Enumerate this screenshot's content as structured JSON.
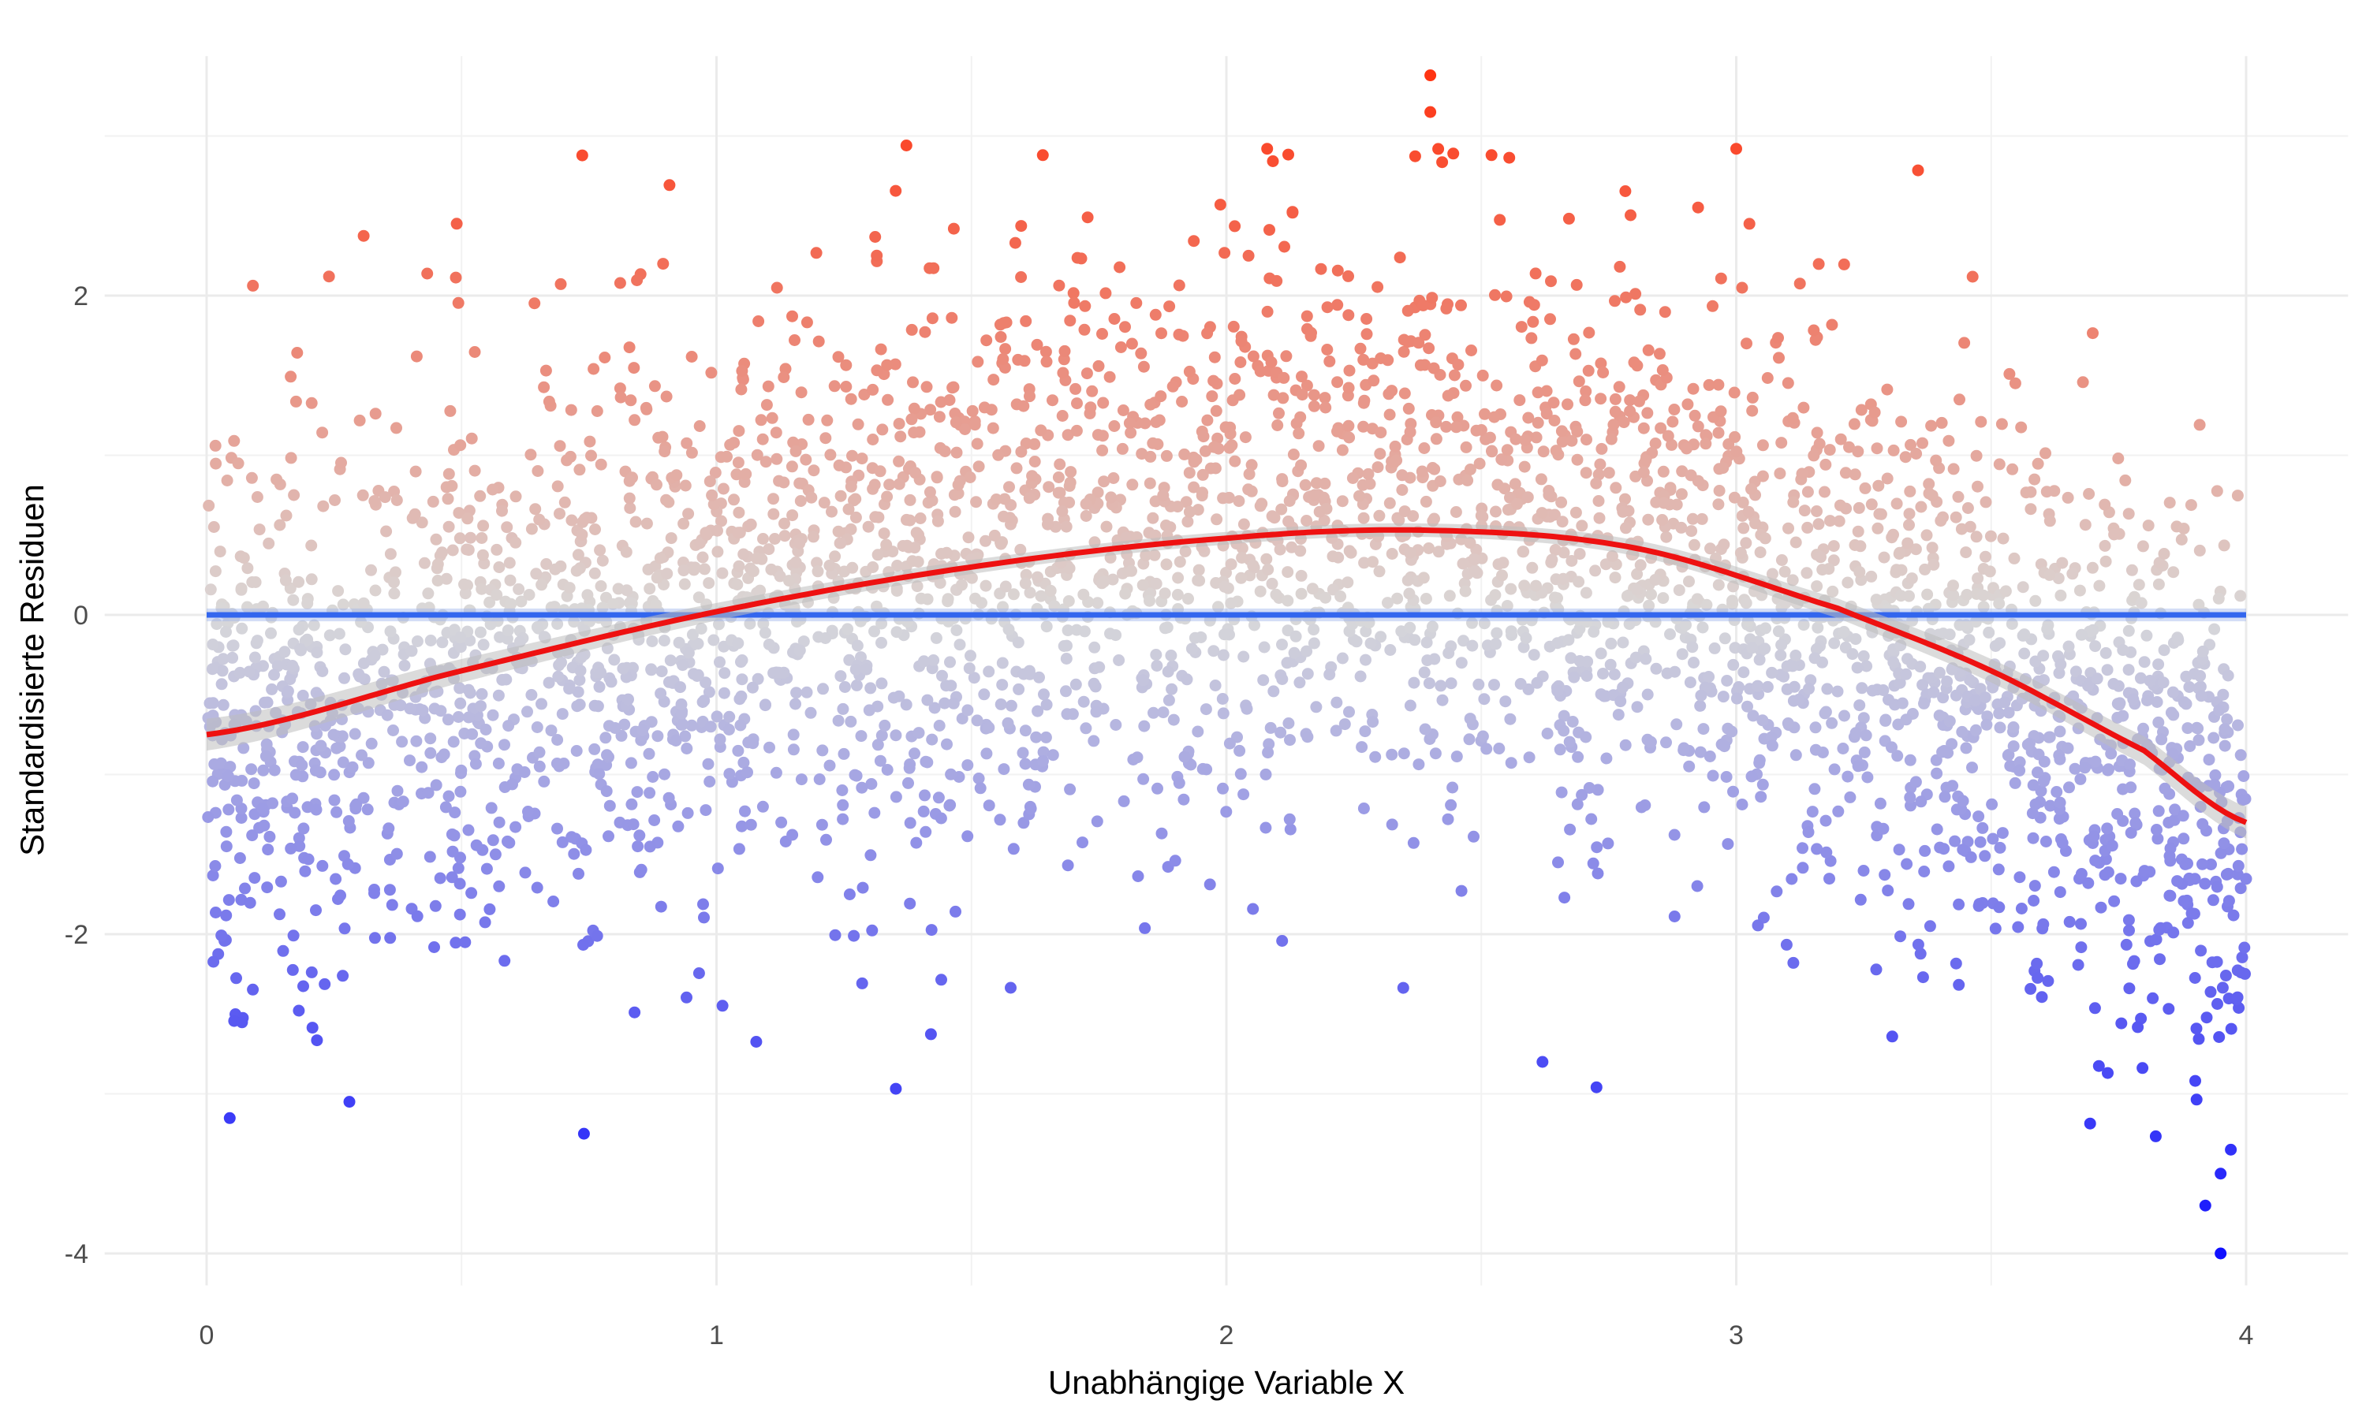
{
  "chart_data": {
    "type": "scatter",
    "title": "",
    "xlabel": "Unabhängige Variable X",
    "ylabel": "Standardisierte Residuen",
    "xlim": [
      -0.2,
      4.2
    ],
    "ylim": [
      -4.2,
      3.5
    ],
    "x_ticks": [
      0,
      1,
      2,
      3,
      4
    ],
    "y_ticks": [
      -4,
      -2,
      0,
      2
    ],
    "x_tick_labels": [
      "0",
      "1",
      "2",
      "3",
      "4"
    ],
    "y_tick_labels": [
      "-4",
      "-2",
      "0",
      "2"
    ],
    "grid": true,
    "legend": "none",
    "color_scale": {
      "low": "#1010ff",
      "mid": "#d9d9d9",
      "high": "#ff3311"
    },
    "reference_line": {
      "y": 0,
      "color": "#3366ee"
    },
    "smooth_curve": {
      "color": "#ee1111",
      "x": [
        0,
        0.5,
        1,
        1.5,
        2,
        2.4,
        2.8,
        3.2,
        3.5,
        3.8,
        4
      ],
      "y": [
        -0.75,
        -0.35,
        0.02,
        0.3,
        0.48,
        0.53,
        0.42,
        0.04,
        -0.35,
        -0.85,
        -1.3
      ]
    },
    "highlighted_points": {
      "x": [
        2.4,
        2.4,
        2.52,
        1.64,
        3.0,
        2.08,
        0.74,
        0.28,
        3.95,
        3.92,
        3.97,
        3.95,
        2.62,
        0.24
      ],
      "y": [
        3.38,
        3.15,
        2.88,
        2.88,
        2.92,
        2.92,
        -3.25,
        -3.05,
        -4.0,
        -3.7,
        -3.35,
        -3.5,
        -2.8,
        2.12
      ]
    }
  }
}
